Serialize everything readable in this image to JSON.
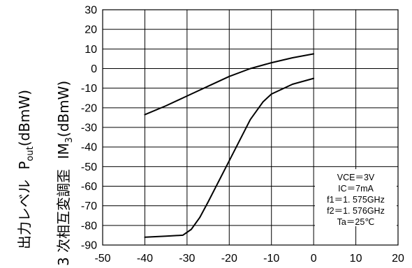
{
  "chart_data": {
    "type": "line",
    "xlim": [
      -50,
      20
    ],
    "ylim": [
      -90,
      30
    ],
    "xticks": [
      -50,
      -40,
      -30,
      -20,
      -10,
      0,
      10,
      20
    ],
    "yticks": [
      30,
      20,
      10,
      0,
      -10,
      -20,
      -30,
      -40,
      -50,
      -60,
      -70,
      -80,
      -90
    ],
    "grid": true,
    "ylabel_outer": "出力レベル",
    "ylabel_outer_symbol": "P",
    "ylabel_outer_sub": "out",
    "ylabel_outer_unit": "(dBmW)",
    "ylabel_inner": "3 次相互変調歪",
    "ylabel_inner_symbol": "IM",
    "ylabel_inner_sub": "3",
    "ylabel_inner_unit": "(dBmW)",
    "conditions": [
      "VCE＝3V",
      "IC＝7mA",
      "f1＝1. 575GHz",
      "f2＝1. 576GHz",
      "Ta＝25℃"
    ],
    "series": [
      {
        "x": [
          -40,
          -35,
          -30,
          -25,
          -20,
          -15,
          -10,
          -5,
          0
        ],
        "y": [
          -23.5,
          -19,
          -14,
          -9,
          -4,
          0,
          3,
          5.5,
          7.5
        ]
      },
      {
        "x": [
          -40,
          -35,
          -31,
          -29,
          -27,
          -25,
          -20,
          -15,
          -12,
          -10,
          -5,
          0
        ],
        "y": [
          -86,
          -85.5,
          -85,
          -82,
          -76,
          -68,
          -47,
          -26,
          -17,
          -13,
          -8,
          -5
        ]
      }
    ]
  }
}
